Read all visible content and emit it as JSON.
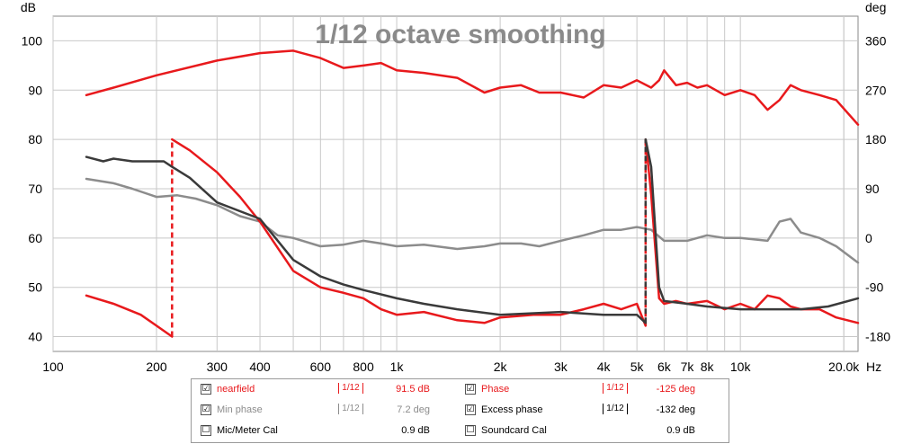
{
  "chart_data": {
    "type": "line",
    "title": "1/12 octave smoothing",
    "x_scale": "log",
    "xlim": [
      100,
      22000
    ],
    "x_ticks": [
      100,
      200,
      300,
      400,
      600,
      800,
      1000,
      2000,
      3000,
      4000,
      5000,
      6000,
      7000,
      8000,
      10000,
      20000
    ],
    "x_tick_labels": [
      "100",
      "200",
      "300",
      "400",
      "600",
      "800",
      "1k",
      "2k",
      "3k",
      "4k",
      "5k",
      "6k",
      "7k",
      "8k",
      "10k",
      "20.0k"
    ],
    "x_unit": "Hz",
    "y_left_label": "dB",
    "y_left_lim": [
      37,
      105
    ],
    "y_left_ticks": [
      40,
      50,
      60,
      70,
      80,
      90,
      100
    ],
    "y_right_label": "deg",
    "y_right_lim": [
      -207,
      405
    ],
    "y_right_ticks": [
      -180,
      -90,
      0,
      90,
      180,
      270,
      360
    ],
    "grid": true,
    "series": [
      {
        "name": "nearfield",
        "axis": "left",
        "color": "#e8191c",
        "x": [
          125,
          150,
          200,
          300,
          400,
          500,
          600,
          700,
          800,
          900,
          1000,
          1200,
          1500,
          1800,
          2000,
          2300,
          2600,
          3000,
          3500,
          4000,
          4500,
          5000,
          5500,
          5800,
          6000,
          6500,
          7000,
          7500,
          8000,
          9000,
          10000,
          11000,
          12000,
          13000,
          14000,
          15000,
          17000,
          19000,
          22000
        ],
        "values": [
          89,
          90.5,
          93,
          96,
          97.5,
          98,
          96.5,
          94.5,
          95,
          95.5,
          94,
          93.5,
          92.5,
          89.5,
          90.5,
          91,
          89.5,
          89.5,
          88.5,
          91,
          90.5,
          92,
          90.5,
          92,
          94,
          91,
          91.5,
          90.5,
          91,
          89,
          90,
          89,
          86,
          88,
          91,
          90,
          89,
          88,
          83
        ]
      },
      {
        "name": "Min phase",
        "axis": "right",
        "color": "#8c8c8c",
        "x": [
          125,
          150,
          170,
          200,
          230,
          260,
          300,
          350,
          400,
          450,
          500,
          600,
          700,
          800,
          900,
          1000,
          1200,
          1500,
          1800,
          2000,
          2300,
          2600,
          3000,
          3500,
          4000,
          4500,
          5000,
          5500,
          6000,
          7000,
          8000,
          9000,
          10000,
          12000,
          13000,
          14000,
          15000,
          17000,
          19000,
          22000
        ],
        "values": [
          108,
          100,
          90,
          75,
          78,
          72,
          60,
          40,
          30,
          5,
          0,
          -15,
          -12,
          -5,
          -10,
          -15,
          -12,
          -20,
          -15,
          -10,
          -10,
          -15,
          -5,
          5,
          15,
          15,
          20,
          15,
          -5,
          -5,
          5,
          0,
          0,
          -5,
          30,
          35,
          10,
          0,
          -15,
          -45
        ]
      },
      {
        "name": "Phase",
        "axis": "right",
        "color": "#e8191c",
        "style": "solid-with-dashed-wraps",
        "x": [
          125,
          150,
          180,
          200,
          222,
          222.01,
          250,
          300,
          350,
          400,
          500,
          600,
          700,
          800,
          900,
          1000,
          1200,
          1500,
          1800,
          2000,
          2500,
          3000,
          3500,
          4000,
          4500,
          5000,
          5300,
          5300.01,
          5500,
          5800,
          6000,
          6500,
          7000,
          8000,
          9000,
          10000,
          11000,
          12000,
          13000,
          14000,
          15000,
          17000,
          19000,
          22000
        ],
        "values": [
          -105,
          -120,
          -140,
          -160,
          -180,
          180,
          160,
          120,
          75,
          30,
          -60,
          -90,
          -100,
          -110,
          -130,
          -140,
          -135,
          -150,
          -155,
          -145,
          -140,
          -140,
          -130,
          -120,
          -130,
          -120,
          -160,
          180,
          80,
          -110,
          -120,
          -115,
          -120,
          -115,
          -130,
          -120,
          -130,
          -105,
          -110,
          -125,
          -130,
          -130,
          -145,
          -155
        ]
      },
      {
        "name": "Excess phase",
        "axis": "right",
        "color": "#3a3a3a",
        "style": "solid-with-dashed-wraps",
        "x": [
          125,
          140,
          150,
          170,
          180,
          200,
          210,
          222,
          250,
          300,
          400,
          500,
          600,
          700,
          800,
          1000,
          1200,
          1500,
          2000,
          3000,
          4000,
          5000,
          5300,
          5300.01,
          5500,
          5800,
          6000,
          7000,
          8000,
          10000,
          12000,
          15000,
          18000,
          22000
        ],
        "values": [
          148,
          140,
          145,
          140,
          140,
          140,
          140,
          130,
          110,
          65,
          35,
          -40,
          -70,
          -85,
          -95,
          -110,
          -120,
          -130,
          -140,
          -135,
          -140,
          -140,
          -155,
          180,
          130,
          -90,
          -115,
          -120,
          -125,
          -130,
          -130,
          -130,
          -125,
          -110
        ]
      }
    ]
  },
  "legend": {
    "rows": [
      {
        "left": {
          "checked": "☑",
          "label": "nearfield",
          "smoothing": "1/12",
          "value": "91.5 dB",
          "color": "#e8191c"
        },
        "right": {
          "checked": "☑",
          "label": "Phase",
          "smoothing": "1/12",
          "value": "-125 deg",
          "color": "#e8191c"
        }
      },
      {
        "left": {
          "checked": "☑",
          "label": "Min phase",
          "smoothing": "1/12",
          "value": "7.2 deg",
          "color": "#8c8c8c"
        },
        "right": {
          "checked": "☑",
          "label": "Excess phase",
          "smoothing": "1/12",
          "value": "-132 deg",
          "color": "#000000"
        }
      },
      {
        "left": {
          "checked": "☐",
          "label": "Mic/Meter Cal",
          "value": "0.9 dB",
          "color": "#000000"
        },
        "right": {
          "checked": "☐",
          "label": "Soundcard Cal",
          "value": "0.9 dB",
          "color": "#000000"
        }
      }
    ]
  }
}
